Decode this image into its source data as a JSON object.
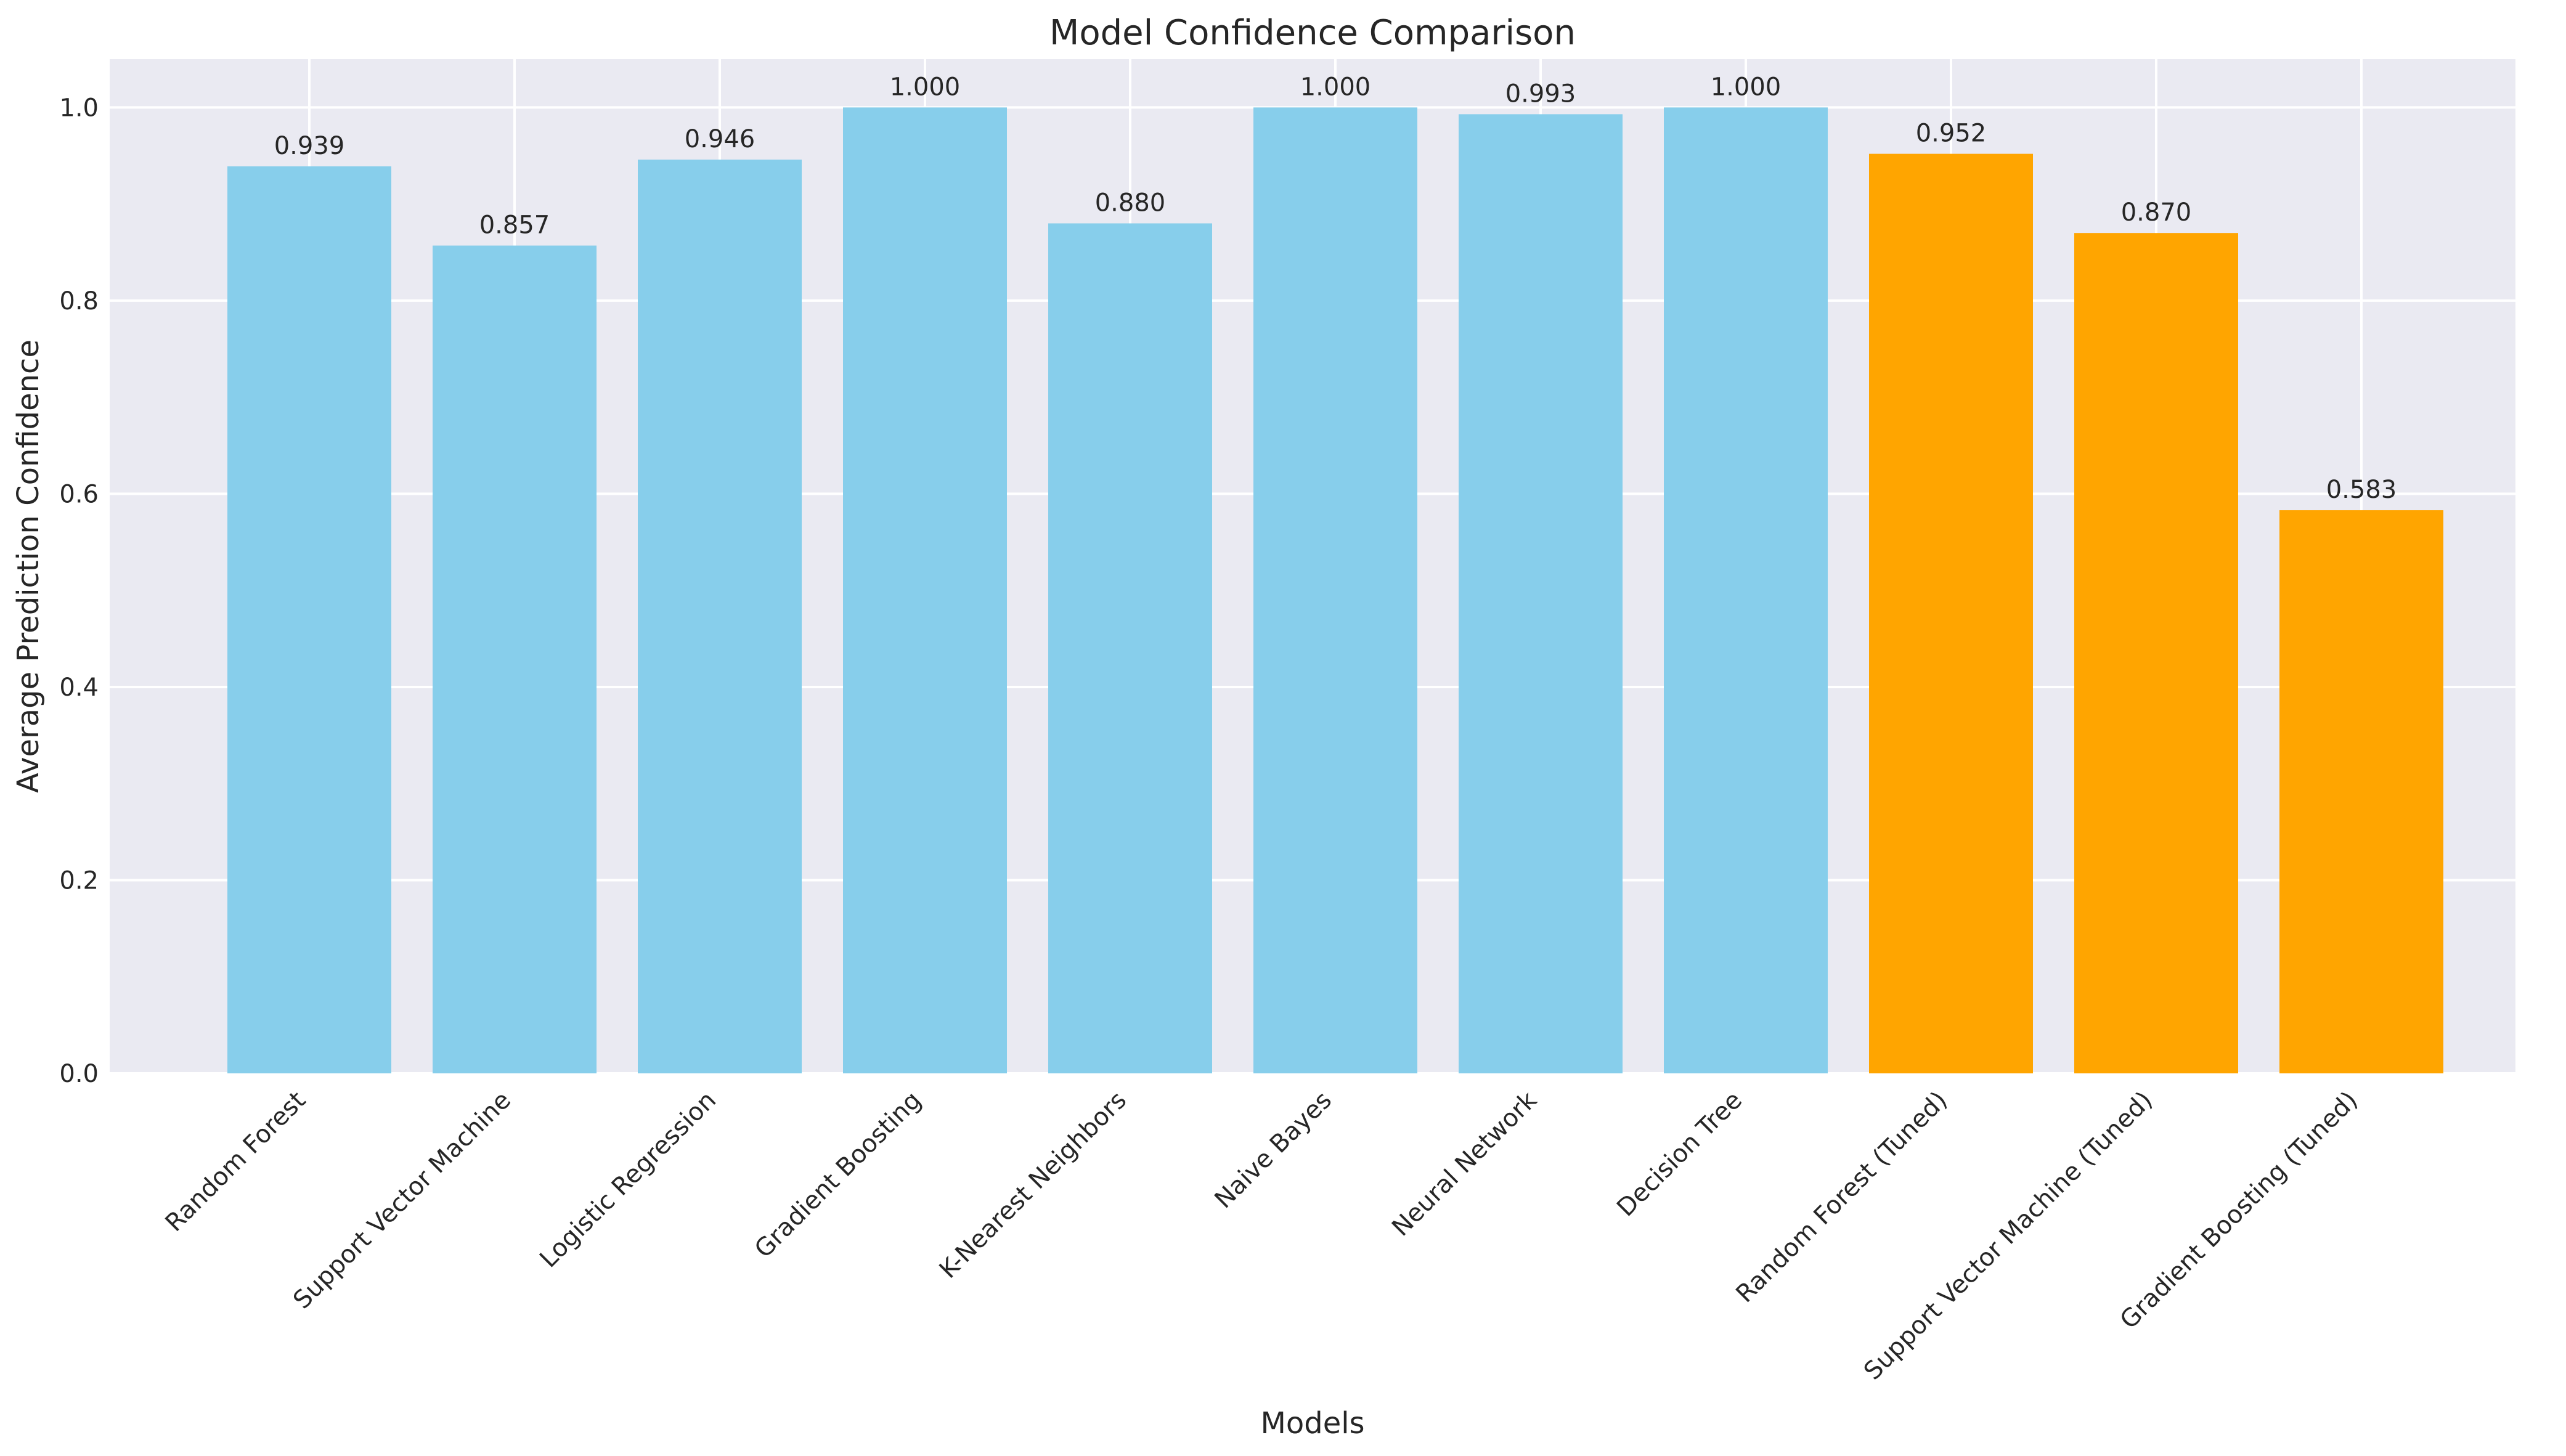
{
  "chart_data": {
    "type": "bar",
    "title": "Model Confidence Comparison",
    "xlabel": "Models",
    "ylabel": "Average Prediction Confidence",
    "categories": [
      "Random Forest",
      "Support Vector Machine",
      "Logistic Regression",
      "Gradient Boosting",
      "K-Nearest Neighbors",
      "Naive Bayes",
      "Neural Network",
      "Decision Tree",
      "Random Forest (Tuned)",
      "Support Vector Machine (Tuned)",
      "Gradient Boosting (Tuned)"
    ],
    "values": [
      0.939,
      0.857,
      0.946,
      1.0,
      0.88,
      1.0,
      0.993,
      1.0,
      0.952,
      0.87,
      0.583
    ],
    "value_labels": [
      "0.939",
      "0.857",
      "0.946",
      "1.000",
      "0.880",
      "1.000",
      "0.993",
      "1.000",
      "0.952",
      "0.870",
      "0.583"
    ],
    "bar_colors": [
      "#87CEEB",
      "#87CEEB",
      "#87CEEB",
      "#87CEEB",
      "#87CEEB",
      "#87CEEB",
      "#87CEEB",
      "#87CEEB",
      "#FFA500",
      "#FFA500",
      "#FFA500"
    ],
    "ylim": [
      0,
      1.05
    ],
    "yticks": [
      0.0,
      0.2,
      0.4,
      0.6,
      0.8,
      1.0
    ],
    "ytick_labels": [
      "0.0",
      "0.2",
      "0.4",
      "0.6",
      "0.8",
      "1.0"
    ],
    "grid": true,
    "background_color": "#EAEAF2",
    "grid_color": "#FFFFFF"
  }
}
